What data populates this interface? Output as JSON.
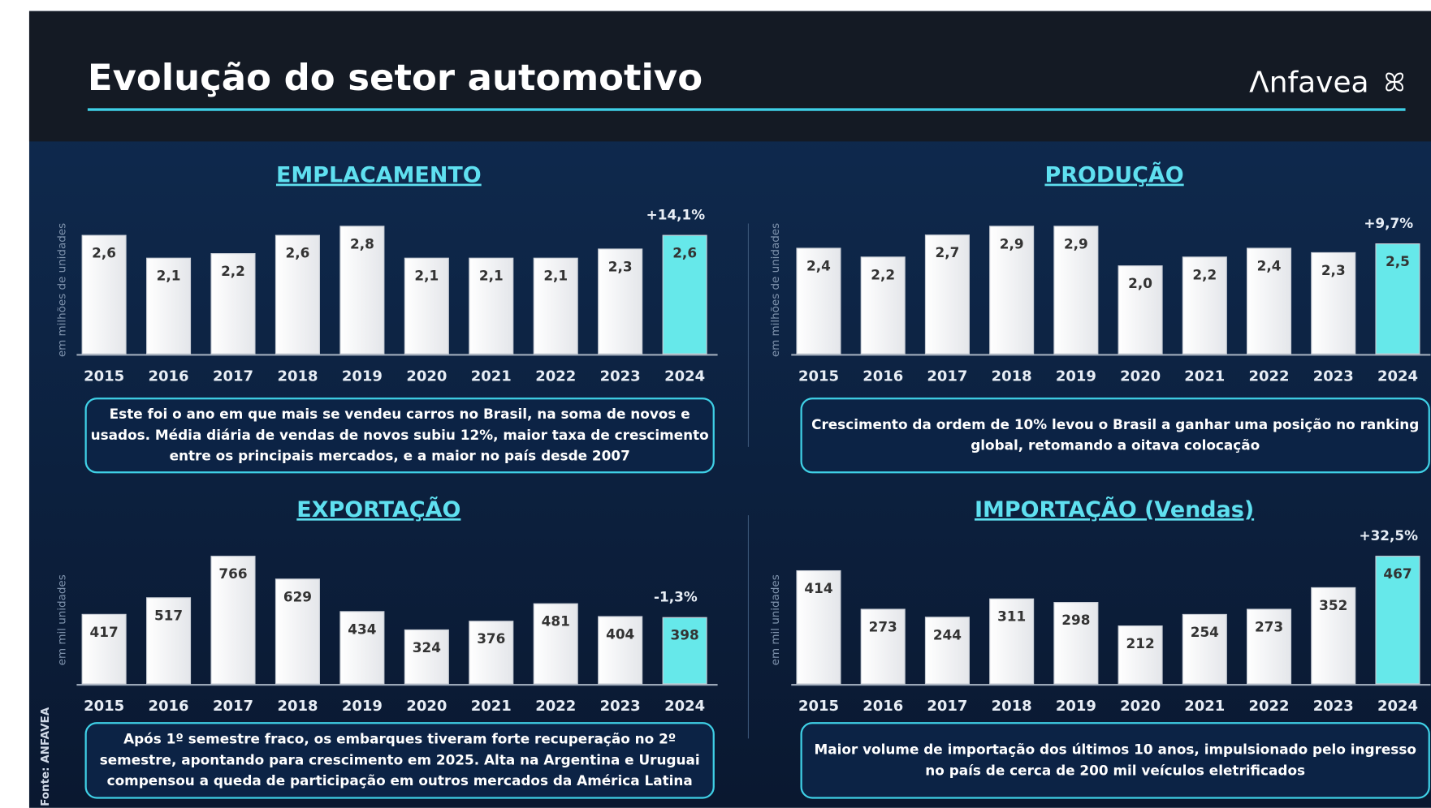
{
  "header": {
    "title": "Evolução do setor automotivo",
    "logo": "Λnfavea"
  },
  "source": "Fonte: ANFAVEA",
  "chart_data": [
    {
      "type": "bar",
      "title": "EMPLACAMENTO",
      "y_label": "em milhões de unidades",
      "annotation": "+14,1%",
      "categories": [
        "2015",
        "2016",
        "2017",
        "2018",
        "2019",
        "2020",
        "2021",
        "2022",
        "2023",
        "2024"
      ],
      "values": [
        2.6,
        2.1,
        2.2,
        2.6,
        2.8,
        2.1,
        2.1,
        2.1,
        2.3,
        2.6
      ],
      "value_labels": [
        "2,6",
        "2,1",
        "2,2",
        "2,6",
        "2,8",
        "2,1",
        "2,1",
        "2,1",
        "2,3",
        "2,6"
      ],
      "color": "#ffffff",
      "highlight_color": "#66e8ea",
      "note": [
        "Este foi o ano em que mais se vendeu carros no Brasil, na soma de novos e",
        "usados. Média diária de vendas de novos subiu 12%, maior taxa de crescimento",
        "entre os principais mercados, e a maior no país desde 2007"
      ]
    },
    {
      "type": "bar",
      "title": "PRODUÇÃO",
      "y_label": "em milhões de unidades",
      "annotation": "+9,7%",
      "categories": [
        "2015",
        "2016",
        "2017",
        "2018",
        "2019",
        "2020",
        "2021",
        "2022",
        "2023",
        "2024"
      ],
      "values": [
        2.4,
        2.2,
        2.7,
        2.9,
        2.9,
        2.0,
        2.2,
        2.4,
        2.3,
        2.5
      ],
      "value_labels": [
        "2,4",
        "2,2",
        "2,7",
        "2,9",
        "2,9",
        "2,0",
        "2,2",
        "2,4",
        "2,3",
        "2,5"
      ],
      "color": "#ffffff",
      "highlight_color": "#66e8ea",
      "note": [
        "Crescimento da ordem de 10% levou o Brasil a ganhar uma posição no ranking",
        "global, retomando a oitava colocação"
      ]
    },
    {
      "type": "bar",
      "title": "EXPORTAÇÃO",
      "y_label": "em mil unidades",
      "annotation": "-1,3%",
      "categories": [
        "2015",
        "2016",
        "2017",
        "2018",
        "2019",
        "2020",
        "2021",
        "2022",
        "2023",
        "2024"
      ],
      "values": [
        417,
        517,
        766,
        629,
        434,
        324,
        376,
        481,
        404,
        398
      ],
      "color": "#ffffff",
      "highlight_color": "#66e8ea",
      "note": [
        "Após 1º semestre fraco, os embarques tiveram forte recuperação no 2º",
        "semestre, apontando para crescimento em 2025. Alta na Argentina e Uruguai",
        "compensou a queda de participação em outros mercados da América Latina"
      ]
    },
    {
      "type": "bar",
      "title": "IMPORTAÇÃO (Vendas)",
      "y_label": "em mil unidades",
      "annotation": "+32,5%",
      "categories": [
        "2015",
        "2016",
        "2017",
        "2018",
        "2019",
        "2020",
        "2021",
        "2022",
        "2023",
        "2024"
      ],
      "values": [
        414,
        273,
        244,
        311,
        298,
        212,
        254,
        273,
        352,
        467
      ],
      "color": "#ffffff",
      "highlight_color": "#66e8ea",
      "note": [
        "Maior volume de importação dos últimos 10 anos, impulsionado pelo ingresso",
        "no país de cerca de 200 mil veículos eletrificados"
      ]
    }
  ]
}
